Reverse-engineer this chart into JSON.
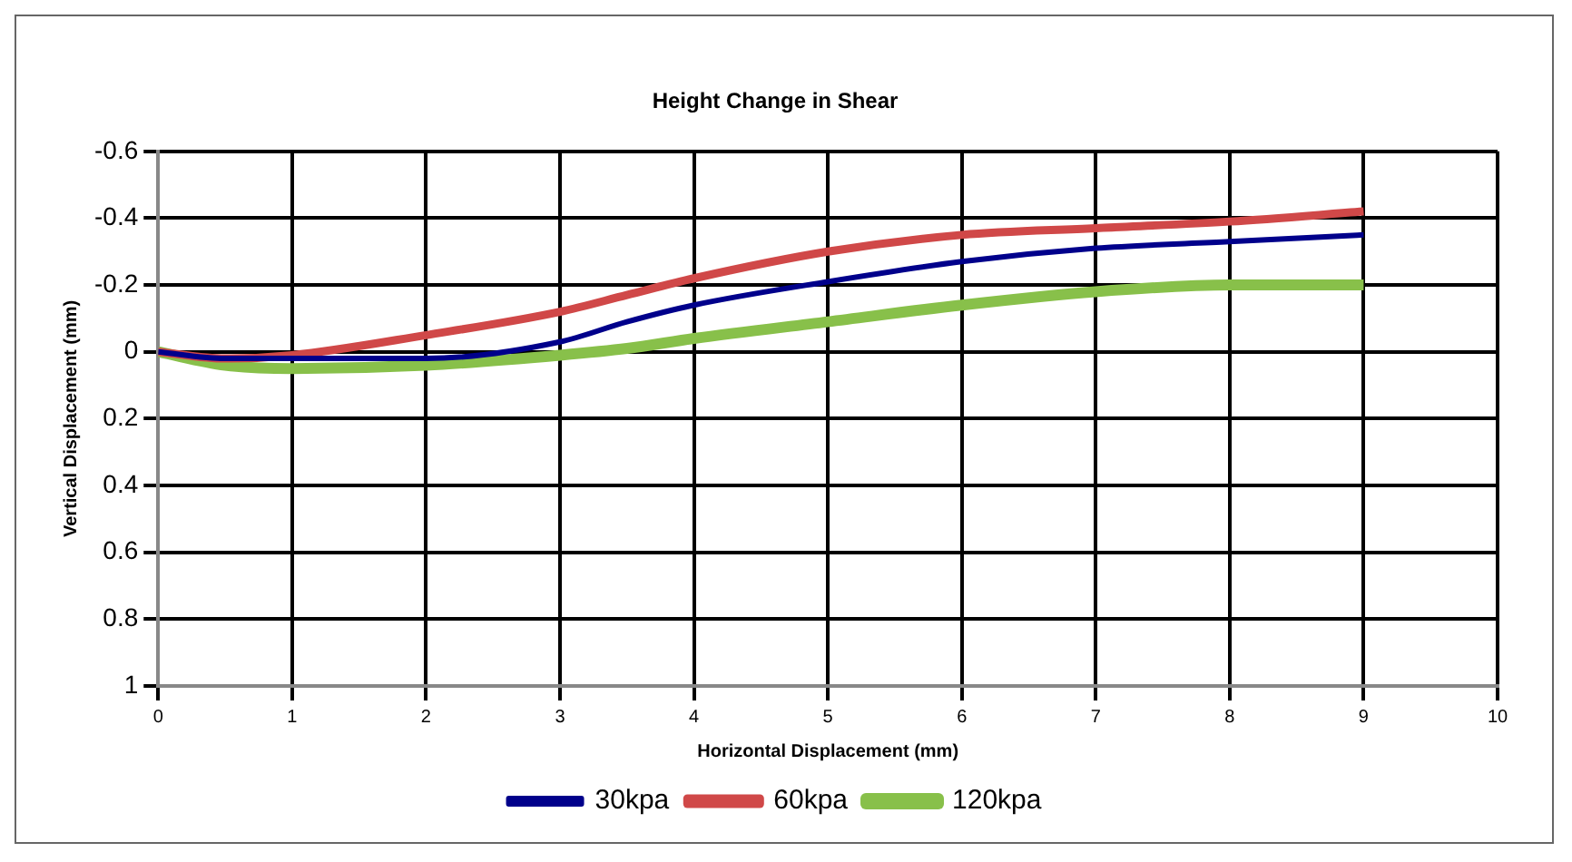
{
  "chart_data": {
    "type": "line",
    "title": "Height Change in Shear",
    "xlabel": "Horizontal Displacement (mm)",
    "ylabel": "Vertical Displacement (mm)",
    "x": [
      0,
      0.5,
      1,
      2,
      3,
      3.5,
      4,
      5,
      6,
      7,
      8,
      9
    ],
    "series": [
      {
        "name": "30kpa",
        "color": "#00008b",
        "values": [
          0,
          0.02,
          0.02,
          0.02,
          -0.03,
          -0.09,
          -0.14,
          -0.21,
          -0.27,
          -0.31,
          -0.33,
          -0.35
        ]
      },
      {
        "name": "60kpa",
        "color": "#d04848",
        "values": [
          0,
          0.02,
          0.01,
          -0.05,
          -0.12,
          -0.17,
          -0.22,
          -0.3,
          -0.35,
          -0.37,
          -0.39,
          -0.42
        ]
      },
      {
        "name": "120kpa",
        "color": "#88c04a",
        "values": [
          0,
          0.04,
          0.05,
          0.04,
          0.01,
          -0.01,
          -0.04,
          -0.09,
          -0.14,
          -0.18,
          -0.2,
          -0.2
        ]
      }
    ],
    "xlim": [
      0,
      10
    ],
    "xticks": [
      0,
      1,
      2,
      3,
      4,
      5,
      6,
      7,
      8,
      9,
      10
    ],
    "ylim": [
      1,
      -0.6
    ],
    "yticks": [
      -0.6,
      -0.4,
      -0.2,
      0,
      0.2,
      0.4,
      0.6,
      0.8,
      1
    ],
    "grid": true,
    "legend": "bottom",
    "marker": "none",
    "line_style": "solid"
  }
}
